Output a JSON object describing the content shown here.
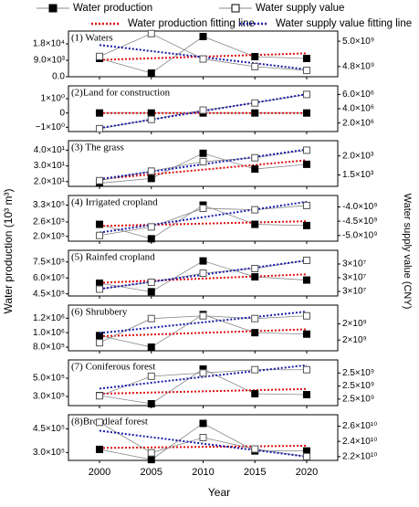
{
  "legend": [
    {
      "name": "Water production",
      "marker": "filled",
      "color": "#000000"
    },
    {
      "name": "Water supply value",
      "marker": "open",
      "color": "#000000"
    },
    {
      "name": "Water production fitting line",
      "marker": "dotted",
      "color": "#e01010"
    },
    {
      "name": "Water supply value fitting line",
      "marker": "dotted",
      "color": "#1a1aa8"
    }
  ],
  "x": [
    2000,
    2005,
    2010,
    2015,
    2020
  ],
  "xlim": [
    1997,
    2023
  ],
  "xticks": [
    2000,
    2005,
    2010,
    2015,
    2020
  ],
  "xlabel": "Year",
  "ylabel": "Water production (10³ m³)",
  "y2label": "Water supply value (CNY)",
  "chart_data": [
    {
      "type": "line",
      "title": "(1) Waters",
      "ylim": [
        0,
        25000
      ],
      "yticks": [
        {
          "value": 0,
          "label": "0.0"
        },
        {
          "value": 9000,
          "label": "9.0×10³"
        },
        {
          "value": 18000,
          "label": "1.8×10⁴"
        }
      ],
      "y2lim": [
        4720000000.0,
        5080000000.0
      ],
      "y2ticks": [
        {
          "value": 4800000000.0,
          "label": "4.8×10⁹"
        },
        {
          "value": 5000000000.0,
          "label": "5.0×10⁹"
        }
      ],
      "series": [
        {
          "axis": "y",
          "marker": "filled",
          "color": "#888888",
          "fit_color": "#e01010",
          "values": [
            10000,
            2000,
            22000,
            11000,
            10000
          ]
        },
        {
          "axis": "y2",
          "marker": "open",
          "color": "#888888",
          "fit_color": "#1a1aa8",
          "values": [
            4880000000.0,
            5060000000.0,
            4860000000.0,
            4800000000.0,
            4770000000.0
          ]
        }
      ]
    },
    {
      "type": "line",
      "title": "(2)Land for construction",
      "ylim": [
        -1.3,
        1.9
      ],
      "yticks": [
        {
          "value": -1,
          "label": "−1×10⁰"
        },
        0,
        {
          "value": 1,
          "label": "1×10⁰"
        }
      ],
      "y2lim": [
        800000.0,
        7200000.0
      ],
      "y2ticks": [
        {
          "value": 2000000.0,
          "label": "2.0×10⁶"
        },
        {
          "value": 4000000.0,
          "label": "4.0×10⁶"
        },
        {
          "value": 6000000.0,
          "label": "6.0×10⁶"
        }
      ],
      "series": [
        {
          "axis": "y",
          "marker": "filled",
          "color": "#888888",
          "fit_color": "#e01010",
          "values": [
            0,
            0,
            0,
            0,
            0
          ]
        },
        {
          "axis": "y2",
          "marker": "open",
          "color": "#888888",
          "fit_color": "#1a1aa8",
          "values": [
            1200000.0,
            2500000.0,
            3800000.0,
            4800000.0,
            6000000.0
          ]
        }
      ]
    },
    {
      "type": "line",
      "title": "(3) The grass",
      "ylim": [
        17,
        46
      ],
      "yticks": [
        {
          "value": 20,
          "label": "2.0×10¹"
        },
        {
          "value": 30,
          "label": "3.0×10¹"
        },
        {
          "value": 40,
          "label": "4.0×10¹"
        }
      ],
      "y2lim": [
        1200.0,
        2400.0
      ],
      "y2ticks": [
        {
          "value": 1500.0,
          "label": "1.5×10³"
        },
        {
          "value": 2000.0,
          "label": "2.0×10³"
        }
      ],
      "series": [
        {
          "axis": "y",
          "marker": "filled",
          "color": "#888888",
          "fit_color": "#e01010",
          "values": [
            19,
            22,
            38,
            28,
            31
          ]
        },
        {
          "axis": "y2",
          "marker": "open",
          "color": "#888888",
          "fit_color": "#1a1aa8",
          "values": [
            1350.0,
            1600.0,
            1850.0,
            1950.0,
            2150.0
          ]
        }
      ]
    },
    {
      "type": "line",
      "title": "(4) Irrigated cropland",
      "ylim": [
        180000.0,
        370000.0
      ],
      "yticks": [
        {
          "value": 200000.0,
          "label": "2.0×10⁵"
        },
        {
          "value": 260000.0,
          "label": "2.6×10⁵"
        },
        {
          "value": 330000.0,
          "label": "3.3×10⁵"
        }
      ],
      "y2lim": [
        -5200000000.0,
        -3600000000.0
      ],
      "y2ticks": [
        {
          "value": -5000000000.0,
          "label": "-5.0×10⁹"
        },
        {
          "value": -4500000000.0,
          "label": "-4.5×10⁹"
        },
        {
          "value": -4000000000.0,
          "label": "-4.0×10⁹"
        }
      ],
      "series": [
        {
          "axis": "y",
          "marker": "filled",
          "color": "#888888",
          "fit_color": "#e01010",
          "values": [
            250000.0,
            190000.0,
            330000.0,
            250000.0,
            245000.0
          ]
        },
        {
          "axis": "y2",
          "marker": "open",
          "color": "#888888",
          "fit_color": "#1a1aa8",
          "values": [
            -5000000000.0,
            -4700000000.0,
            -4050000000.0,
            -4100000000.0,
            -3950000000.0
          ]
        }
      ]
    },
    {
      "type": "line",
      "title": "(5) Rainfed cropland",
      "ylim": [
        430000.0,
        860000.0
      ],
      "yticks": [
        {
          "value": 450000.0,
          "label": "4.5×10⁵"
        },
        {
          "value": 600000.0,
          "label": "6.0×10⁵"
        },
        {
          "value": 750000.0,
          "label": "7.5×10⁵"
        }
      ],
      "y2lim": [
        26000000.0,
        36000000.0
      ],
      "y2ticks": [
        {
          "value": 27000000.0,
          "label": "3×10⁷"
        },
        {
          "value": 30000000.0,
          "label": "3×10⁷"
        },
        {
          "value": 33000000.0,
          "label": "3×10⁷"
        }
      ],
      "series": [
        {
          "axis": "y",
          "marker": "filled",
          "color": "#888888",
          "fit_color": "#e01010",
          "values": [
            550000.0,
            470000.0,
            760000.0,
            610000.0,
            580000.0
          ]
        },
        {
          "axis": "y2",
          "marker": "open",
          "color": "#888888",
          "fit_color": "#1a1aa8",
          "values": [
            27500000.0,
            29000000.0,
            31000000.0,
            32000000.0,
            33800000.0
          ]
        }
      ]
    },
    {
      "type": "line",
      "title": "(6) Shrubbery",
      "ylim": [
        750000.0,
        1380000.0
      ],
      "yticks": [
        {
          "value": 800000.0,
          "label": "8.0×10⁵"
        },
        {
          "value": 1000000.0,
          "label": "1.0×10⁶"
        },
        {
          "value": 1200000.0,
          "label": "1.2×10⁶"
        }
      ],
      "y2lim": [
        1600000000.0,
        2450000000.0
      ],
      "y2ticks": [
        {
          "value": 1800000000.0,
          "label": "2×10⁹"
        },
        {
          "value": 2100000000.0,
          "label": "2×10⁹"
        }
      ],
      "series": [
        {
          "axis": "y",
          "marker": "filled",
          "color": "#888888",
          "fit_color": "#e01010",
          "values": [
            960000.0,
            800000.0,
            1250000.0,
            1000000.0,
            980000.0
          ]
        },
        {
          "axis": "y2",
          "marker": "open",
          "color": "#888888",
          "fit_color": "#1a1aa8",
          "values": [
            1750000000.0,
            2200000000.0,
            2250000000.0,
            2200000000.0,
            2250000000.0
          ]
        }
      ]
    },
    {
      "type": "line",
      "title": "(7) Coniferous forest",
      "ylim": [
        200000.0,
        700000.0
      ],
      "yticks": [
        {
          "value": 300000.0,
          "label": "3.0×10⁵"
        },
        {
          "value": 500000.0,
          "label": "5.0×10⁵"
        }
      ],
      "y2lim": [
        2440000000.0,
        2580000000.0
      ],
      "y2ticks": [
        {
          "value": 2460000000.0,
          "label": "2.5×10⁹"
        },
        {
          "value": 2500000000.0,
          "label": "2.5×10⁹"
        },
        {
          "value": 2540000000.0,
          "label": "2.5×10⁹"
        }
      ],
      "series": [
        {
          "axis": "y",
          "marker": "filled",
          "color": "#888888",
          "fit_color": "#e01010",
          "values": [
            310000.0,
            220000.0,
            600000.0,
            330000.0,
            320000.0
          ]
        },
        {
          "axis": "y2",
          "marker": "open",
          "color": "#888888",
          "fit_color": "#1a1aa8",
          "values": [
            2470000000.0,
            2530000000.0,
            2540000000.0,
            2550000000.0,
            2550000000.0
          ]
        }
      ]
    },
    {
      "type": "line",
      "title": "(8)Broadleaf forest",
      "ylim": [
        250000.0,
        540000.0
      ],
      "yticks": [
        {
          "value": 300000.0,
          "label": "3.0×10⁵"
        },
        {
          "value": 450000.0,
          "label": "4.5×10⁵"
        }
      ],
      "y2lim": [
        21500000000.0,
        27500000000.0
      ],
      "y2ticks": [
        {
          "value": 22000000000.0,
          "label": "2.2×10¹⁰"
        },
        {
          "value": 24000000000.0,
          "label": "2.4×10¹⁰"
        },
        {
          "value": 26000000000.0,
          "label": "2.6×10¹⁰"
        }
      ],
      "series": [
        {
          "axis": "y",
          "marker": "filled",
          "color": "#888888",
          "fit_color": "#e01010",
          "values": [
            320000.0,
            255000.0,
            485000.0,
            310000.0,
            310000.0
          ]
        },
        {
          "axis": "y2",
          "marker": "open",
          "color": "#888888",
          "fit_color": "#1a1aa8",
          "values": [
            26500000000.0,
            22500000000.0,
            24500000000.0,
            23000000000.0,
            22000000000.0
          ]
        }
      ]
    }
  ]
}
